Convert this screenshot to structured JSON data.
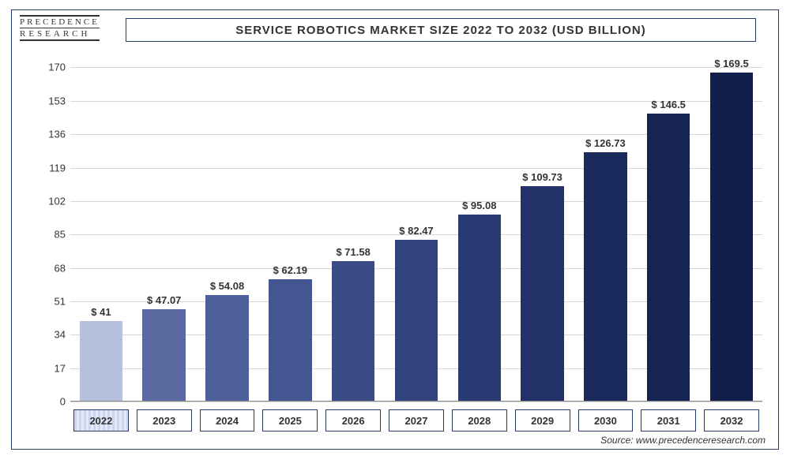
{
  "logo": {
    "line1": "PRECEDENCE",
    "line2": "RESEARCH"
  },
  "title": "SERVICE ROBOTICS MARKET SIZE 2022 TO 2032 (USD BILLION)",
  "source": "Source: www.precedenceresearch.com",
  "chart": {
    "type": "bar",
    "background_color": "#ffffff",
    "grid_color": "#d7d7d7",
    "border_color": "#2a3b6a",
    "ylim": [
      0,
      175
    ],
    "ytick_step": 17,
    "yticks": [
      0,
      17,
      34,
      51,
      68,
      85,
      102,
      119,
      136,
      153,
      170
    ],
    "label_fontsize": 13,
    "title_fontsize": 15,
    "bar_width": 0.7,
    "value_prefix": "$ ",
    "categories": [
      "2022",
      "2023",
      "2024",
      "2025",
      "2026",
      "2027",
      "2028",
      "2029",
      "2030",
      "2031",
      "2032"
    ],
    "highlight_category": "2022",
    "values": [
      41,
      47.07,
      54.08,
      62.19,
      71.58,
      82.47,
      95.08,
      109.73,
      126.73,
      146.5,
      169.5
    ],
    "value_labels": [
      "$ 41",
      "$ 47.07",
      "$ 54.08",
      "$ 62.19",
      "$ 71.58",
      "$ 82.47",
      "$ 95.08",
      "$ 109.73",
      "$ 126.73",
      "$ 146.5",
      "$ 169.5"
    ],
    "bar_colors": [
      "#b6c1de",
      "#5a6aa0",
      "#4e5f99",
      "#445691",
      "#3a4b86",
      "#31427c",
      "#2a3a72",
      "#223167",
      "#1b2a5c",
      "#162453",
      "#111f4a"
    ],
    "text_color": "#333333"
  }
}
